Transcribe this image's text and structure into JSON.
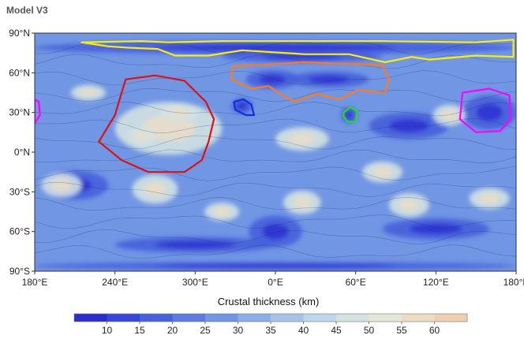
{
  "chart_data": {
    "type": "heatmap",
    "title": "Model V3",
    "projection": "equirectangular",
    "x_ticks": [
      "180°E",
      "240°E",
      "300°E",
      "0°E",
      "60°E",
      "120°E",
      "180°E"
    ],
    "x_tick_values": [
      -180,
      -120,
      -60,
      0,
      60,
      120,
      180
    ],
    "y_ticks": [
      "90°N",
      "60°N",
      "30°N",
      "0°N",
      "30°S",
      "60°S",
      "90°S"
    ],
    "y_tick_values": [
      90,
      60,
      30,
      0,
      -30,
      -60,
      -90
    ],
    "xlim": [
      -180,
      180
    ],
    "ylim": [
      -90,
      90
    ],
    "colorbar": {
      "label": "Crustal thickness (km)",
      "tick_labels": [
        "10",
        "15",
        "20",
        "25",
        "30",
        "35",
        "40",
        "45",
        "50",
        "55",
        "60"
      ],
      "tick_values": [
        10,
        15,
        20,
        25,
        30,
        35,
        40,
        45,
        50,
        55,
        60
      ],
      "range": [
        5,
        65
      ],
      "colors": [
        "#2b2bcf",
        "#3646d8",
        "#4561dc",
        "#5a7ce0",
        "#7196e4",
        "#8aaee8",
        "#a5c3ea",
        "#bfd6ea",
        "#d2e2e2",
        "#e2e8d6",
        "#ecdcc4",
        "#f0cfb0"
      ]
    },
    "regions": [
      {
        "color": "#ffee00",
        "polygon": [
          [
            -145,
            83
          ],
          [
            -100,
            84
          ],
          [
            -80,
            83
          ],
          [
            -40,
            84
          ],
          [
            10,
            84
          ],
          [
            80,
            84
          ],
          [
            150,
            83
          ],
          [
            178,
            85
          ],
          [
            178,
            72
          ],
          [
            150,
            73
          ],
          [
            115,
            70
          ],
          [
            102,
            72
          ],
          [
            82,
            68
          ],
          [
            55,
            74
          ],
          [
            22,
            74
          ],
          [
            -25,
            77
          ],
          [
            -50,
            73
          ],
          [
            -75,
            73
          ],
          [
            -88,
            78
          ],
          [
            -110,
            79
          ],
          [
            -125,
            80
          ]
        ]
      },
      {
        "color": "#ff7a1a",
        "polygon": [
          [
            -32,
            65
          ],
          [
            -10,
            66
          ],
          [
            20,
            68
          ],
          [
            50,
            67
          ],
          [
            80,
            66
          ],
          [
            85,
            55
          ],
          [
            82,
            45
          ],
          [
            62,
            47
          ],
          [
            48,
            40
          ],
          [
            30,
            44
          ],
          [
            15,
            38
          ],
          [
            5,
            43
          ],
          [
            -5,
            50
          ],
          [
            -18,
            48
          ],
          [
            -33,
            55
          ]
        ]
      },
      {
        "color": "#e01010",
        "polygon": [
          [
            -112,
            55
          ],
          [
            -90,
            58
          ],
          [
            -68,
            54
          ],
          [
            -52,
            38
          ],
          [
            -46,
            25
          ],
          [
            -50,
            8
          ],
          [
            -55,
            -6
          ],
          [
            -68,
            -15
          ],
          [
            -95,
            -15
          ],
          [
            -115,
            -6
          ],
          [
            -132,
            8
          ],
          [
            -120,
            28
          ]
        ]
      },
      {
        "color": "#1030e0",
        "polygon": [
          [
            -31,
            38
          ],
          [
            -24,
            40
          ],
          [
            -18,
            36
          ],
          [
            -16,
            28
          ],
          [
            -22,
            28
          ],
          [
            -30,
            32
          ]
        ]
      },
      {
        "color": "#22dd22",
        "polygon": [
          [
            51,
            30
          ],
          [
            56,
            34
          ],
          [
            61,
            31
          ],
          [
            60,
            23
          ],
          [
            54,
            23
          ],
          [
            51,
            27
          ]
        ]
      },
      {
        "color": "#ff00ff",
        "polygon": [
          [
            140,
            45
          ],
          [
            160,
            48
          ],
          [
            175,
            43
          ],
          [
            176,
            25
          ],
          [
            168,
            16
          ],
          [
            150,
            15
          ],
          [
            138,
            25
          ]
        ]
      },
      {
        "color": "#ff00ff",
        "polygon": [
          [
            -180,
            40
          ],
          [
            -177,
            38
          ],
          [
            -176,
            28
          ],
          [
            -180,
            22
          ]
        ]
      }
    ],
    "features": [
      {
        "kind": "thin",
        "lon": 0,
        "lat": 79,
        "w": 360,
        "h": 10
      },
      {
        "kind": "thin",
        "lon": 20,
        "lat": 72,
        "w": 120,
        "h": 8
      },
      {
        "kind": "thin",
        "lon": -2,
        "lat": 55,
        "w": 40,
        "h": 14
      },
      {
        "kind": "thin",
        "lon": 40,
        "lat": 55,
        "w": 60,
        "h": 12
      },
      {
        "kind": "thin",
        "lon": 160,
        "lat": 30,
        "w": 40,
        "h": 26
      },
      {
        "kind": "thin",
        "lon": -25,
        "lat": 35,
        "w": 16,
        "h": 12
      },
      {
        "kind": "thin",
        "lon": 0,
        "lat": -60,
        "w": 40,
        "h": 24
      },
      {
        "kind": "thin",
        "lon": -60,
        "lat": -70,
        "w": 120,
        "h": 12
      },
      {
        "kind": "thin",
        "lon": 120,
        "lat": -58,
        "w": 80,
        "h": 16
      },
      {
        "kind": "thin",
        "lon": 0,
        "lat": -86,
        "w": 360,
        "h": 6
      },
      {
        "kind": "thin",
        "lon": -150,
        "lat": -25,
        "w": 50,
        "h": 22
      },
      {
        "kind": "thin",
        "lon": 100,
        "lat": 20,
        "w": 60,
        "h": 20
      },
      {
        "kind": "thin",
        "lon": 55,
        "lat": 28,
        "w": 12,
        "h": 12
      },
      {
        "kind": "thick",
        "lon": -80,
        "lat": 18,
        "w": 80,
        "h": 40
      },
      {
        "kind": "thick",
        "lon": -72,
        "lat": 30,
        "w": 28,
        "h": 14
      },
      {
        "kind": "thick",
        "lon": -100,
        "lat": 12,
        "w": 22,
        "h": 14
      },
      {
        "kind": "thick",
        "lon": -90,
        "lat": -28,
        "w": 34,
        "h": 22
      },
      {
        "kind": "thick",
        "lon": -160,
        "lat": -25,
        "w": 30,
        "h": 18
      },
      {
        "kind": "thick",
        "lon": 20,
        "lat": -38,
        "w": 28,
        "h": 18
      },
      {
        "kind": "thick",
        "lon": 100,
        "lat": -40,
        "w": 30,
        "h": 18
      },
      {
        "kind": "thick",
        "lon": 130,
        "lat": 28,
        "w": 24,
        "h": 16
      },
      {
        "kind": "thick",
        "lon": 20,
        "lat": 10,
        "w": 40,
        "h": 18
      },
      {
        "kind": "thick",
        "lon": 80,
        "lat": -15,
        "w": 30,
        "h": 16
      },
      {
        "kind": "thick",
        "lon": -140,
        "lat": 45,
        "w": 26,
        "h": 12
      },
      {
        "kind": "thick",
        "lon": 160,
        "lat": -35,
        "w": 30,
        "h": 16
      },
      {
        "kind": "thick",
        "lon": -40,
        "lat": -45,
        "w": 26,
        "h": 14
      }
    ]
  }
}
